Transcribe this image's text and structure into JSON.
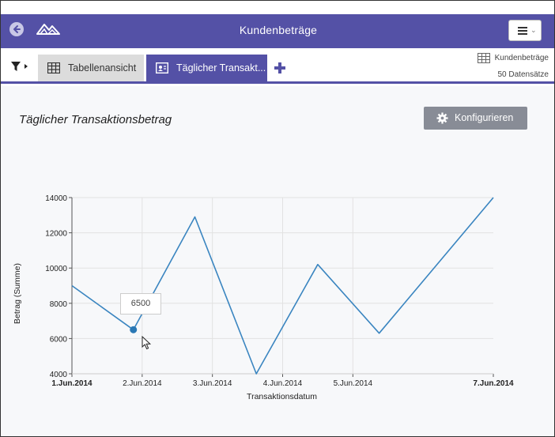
{
  "header": {
    "title": "Kundenbeträge",
    "back_icon": "arrow-left-icon",
    "logo_icon": "mountain-logo-icon",
    "menu_icon": "hamburger-menu-icon"
  },
  "tabs": [
    {
      "label": "Tabellenansicht",
      "icon": "table-icon",
      "active": false
    },
    {
      "label": "Täglicher Transakt...",
      "icon": "chart-view-icon",
      "active": true
    }
  ],
  "tabbar": {
    "filter_icon": "filter-icon",
    "add_icon": "plus-icon"
  },
  "dataset": {
    "name": "Kundenbeträge",
    "count": "50 Datensätze",
    "icon": "table-icon"
  },
  "colors": {
    "accent": "#5451a6",
    "line": "#3a85c0",
    "button": "#888c96"
  },
  "panel": {
    "title": "Täglicher Transaktionsbetrag",
    "configure_label": "Konfigurieren",
    "configure_icon": "gear-icon"
  },
  "tooltip": {
    "value": "6500"
  },
  "chart_data": {
    "type": "line",
    "xlabel": "Transaktionsdatum",
    "ylabel": "Betrag (Summe)",
    "ylim": [
      4000,
      14000
    ],
    "yticks": [
      4000,
      6000,
      8000,
      10000,
      12000,
      14000
    ],
    "xlim": [
      "2014-06-01",
      "2014-06-07"
    ],
    "xticks": [
      {
        "label": "1.Jun.2014",
        "date": "2014-06-01",
        "bold": true
      },
      {
        "label": "2.Jun.2014",
        "date": "2014-06-02",
        "bold": false
      },
      {
        "label": "3.Jun.2014",
        "date": "2014-06-03",
        "bold": false
      },
      {
        "label": "4.Jun.2014",
        "date": "2014-06-04",
        "bold": false
      },
      {
        "label": "5.Jun.2014",
        "date": "2014-06-05",
        "bold": false
      },
      {
        "label": "7.Jun.2014",
        "date": "2014-06-07",
        "bold": true
      }
    ],
    "points": [
      {
        "x": "2014-06-01T00:00",
        "y": 9000
      },
      {
        "x": "2014-06-01T21:00",
        "y": 6500
      },
      {
        "x": "2014-06-02T18:00",
        "y": 12900
      },
      {
        "x": "2014-06-03T15:00",
        "y": 4000
      },
      {
        "x": "2014-06-04T12:00",
        "y": 10200
      },
      {
        "x": "2014-06-05T09:00",
        "y": 6300
      },
      {
        "x": "2014-06-07T00:00",
        "y": 14000
      }
    ],
    "highlight_index": 1,
    "grid": true,
    "legend": "none"
  }
}
